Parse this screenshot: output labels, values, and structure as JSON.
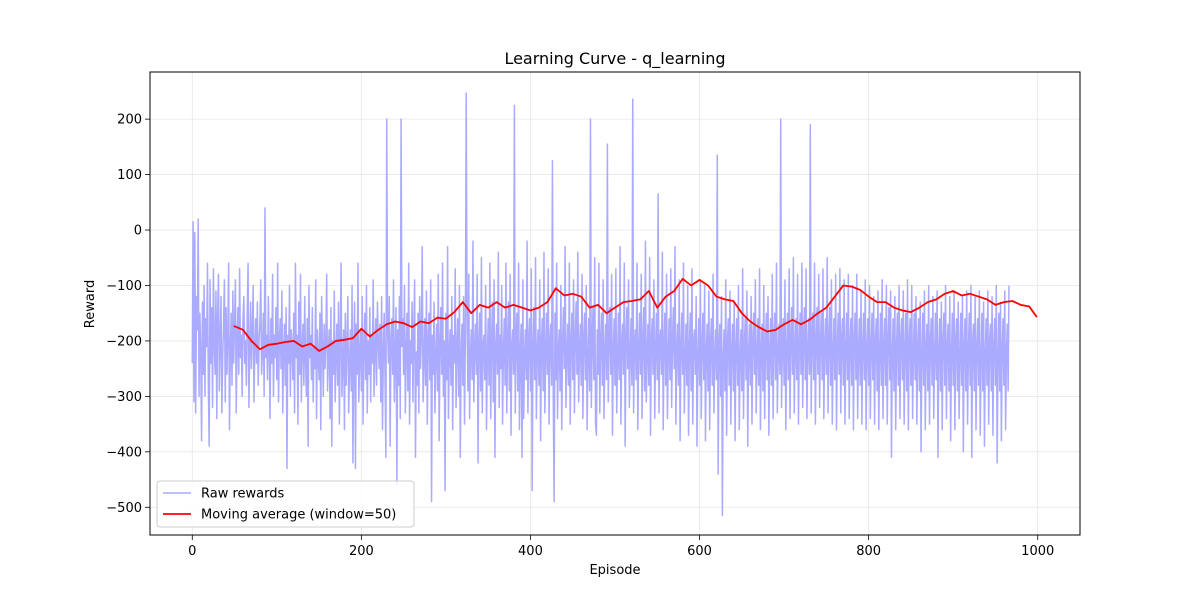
{
  "chart_data": {
    "type": "line",
    "title": "Learning Curve - q_learning",
    "xlabel": "Episode",
    "ylabel": "Reward",
    "xlim": [
      -50,
      1050
    ],
    "ylim": [
      -550,
      285
    ],
    "xticks": [
      0,
      200,
      400,
      600,
      800,
      1000
    ],
    "yticks": [
      -500,
      -400,
      -300,
      -200,
      -100,
      0,
      100,
      200
    ],
    "xtick_labels": [
      "0",
      "200",
      "400",
      "600",
      "800",
      "1000"
    ],
    "ytick_labels": [
      "−500",
      "−400",
      "−300",
      "−200",
      "−100",
      "0",
      "100",
      "200"
    ],
    "grid": true,
    "legend_position": "lower-left",
    "series": [
      {
        "name": "Raw rewards",
        "color": "#aaaaff",
        "episodes": 1000,
        "summary": {
          "min": -515,
          "max": 247
        },
        "values": [
          -240,
          15,
          -310,
          -5,
          -330,
          -120,
          -180,
          20,
          -300,
          -150,
          -220,
          -380,
          -130,
          -260,
          -100,
          -300,
          -160,
          -210,
          -60,
          -280,
          -390,
          -90,
          -240,
          -140,
          -320,
          -70,
          -200,
          -260,
          -110,
          -340,
          -150,
          -80,
          -290,
          -200,
          -120,
          -330,
          -230,
          -170,
          -90,
          -310,
          -140,
          -260,
          -190,
          -60,
          -360,
          -220,
          -150,
          -280,
          -110,
          -240,
          -170,
          -90,
          -330,
          -200,
          -140,
          -260,
          -70,
          -230,
          -190,
          -300,
          -160,
          -120,
          -240,
          -200,
          -280,
          -150,
          -60,
          -320,
          -220,
          -130,
          -250,
          -180,
          -100,
          -310,
          -210,
          -160,
          -240,
          -130,
          -280,
          -200,
          -170,
          -90,
          -260,
          -220,
          -150,
          -300,
          40,
          -230,
          -190,
          -270,
          -120,
          -210,
          -340,
          -160,
          -240,
          -80,
          -300,
          -190,
          -230,
          -140,
          -270,
          -60,
          -310,
          -200,
          -160,
          -250,
          -110,
          -330,
          -220,
          -170,
          -280,
          -140,
          -430,
          -190,
          -240,
          -100,
          -300,
          -180,
          -210,
          -270,
          -150,
          -330,
          -60,
          -230,
          -190,
          -350,
          -130,
          -260,
          -80,
          -310,
          -210,
          -170,
          -280,
          -120,
          -240,
          -300,
          -160,
          -390,
          -100,
          -230,
          -190,
          -270,
          -140,
          -310,
          -210,
          -250,
          -90,
          -340,
          -180,
          -230,
          -270,
          -150,
          -360,
          -120,
          -210,
          -300,
          -170,
          -250,
          -200,
          -80,
          -290,
          -220,
          -180,
          -340,
          -140,
          -390,
          -200,
          -260,
          -110,
          -310,
          -230,
          -170,
          -280,
          -130,
          -350,
          -200,
          -60,
          -300,
          -240,
          -180,
          -360,
          -150,
          -280,
          -210,
          -120,
          -330,
          -250,
          -180,
          -290,
          -100,
          -420,
          -220,
          -130,
          -430,
          -170,
          -260,
          -60,
          -310,
          -230,
          -180,
          -290,
          -120,
          -350,
          -210,
          -150,
          -270,
          -100,
          -330,
          -200,
          -260,
          -140,
          -310,
          -190,
          -240,
          -90,
          -300,
          -220,
          -160,
          -280,
          -130,
          -200,
          -250,
          -170,
          -310,
          -120,
          -360,
          -220,
          -150,
          -270,
          -410,
          200,
          -180,
          -240,
          -120,
          -390,
          -200,
          -160,
          -260,
          -90,
          -310,
          -230,
          -140,
          -460,
          -180,
          -280,
          -120,
          -340,
          200,
          -210,
          -160,
          -260,
          -100,
          -330,
          -220,
          -150,
          -290,
          -60,
          -350,
          -200,
          -240,
          -130,
          -310,
          -180,
          -90,
          -410,
          -220,
          -280,
          -150,
          -330,
          -120,
          -250,
          -190,
          -30,
          -310,
          -240,
          -160,
          -280,
          -110,
          -350,
          -200,
          -150,
          -270,
          -90,
          -490,
          -190,
          -260,
          -130,
          -330,
          -230,
          -170,
          -290,
          -80,
          -380,
          -210,
          -140,
          -260,
          -60,
          -300,
          -200,
          -470,
          -150,
          -270,
          -30,
          -340,
          -220,
          -180,
          -280,
          -120,
          -360,
          -190,
          -240,
          -70,
          -320,
          -210,
          -160,
          -300,
          -100,
          -410,
          -230,
          -170,
          -280,
          -120,
          -350,
          -200,
          247,
          -150,
          -290,
          -80,
          -340,
          -230,
          -180,
          -270,
          -20,
          -310,
          -220,
          -170,
          -260,
          -80,
          -420,
          -200,
          -150,
          -290,
          -50,
          -330,
          -210,
          -190,
          -270,
          -100,
          -360,
          -230,
          -160,
          -280,
          -60,
          -340,
          -200,
          -130,
          -310,
          -90,
          -410,
          -210,
          -170,
          -260,
          -40,
          -320,
          -190,
          -250,
          -100,
          -350,
          -220,
          -160,
          -280,
          -60,
          -330,
          -200,
          -130,
          -290,
          -80,
          -370,
          -210,
          -180,
          -260,
          225,
          -330,
          -200,
          -150,
          -290,
          -60,
          -360,
          -220,
          -170,
          -410,
          -90,
          -340,
          -230,
          -180,
          -270,
          -20,
          -330,
          -200,
          -160,
          -290,
          -70,
          -470,
          -210,
          -140,
          -270,
          -50,
          -340,
          -220,
          -180,
          -280,
          -90,
          -380,
          -200,
          -160,
          -290,
          -40,
          -330,
          -230,
          -150,
          -260,
          -70,
          -350,
          -200,
          -170,
          -280,
          125,
          -310,
          -490,
          -150,
          -270,
          -60,
          -340,
          -220,
          -180,
          -290,
          -100,
          -360,
          -200,
          -140,
          -250,
          -30,
          -320,
          -230,
          -170,
          -280,
          -60,
          -350,
          -210,
          -150,
          -270,
          -90,
          -330,
          -200,
          -130,
          -260,
          -40,
          -310,
          -220,
          -170,
          -280,
          -80,
          -340,
          -200,
          -150,
          -270,
          -100,
          -360,
          -230,
          -160,
          -290,
          200,
          -320,
          -210,
          -140,
          -270,
          -50,
          -350,
          -370,
          -180,
          -260,
          -60,
          -330,
          -200,
          -150,
          -280,
          -90,
          -340,
          -220,
          -170,
          -270,
          155,
          -310,
          -200,
          -140,
          -260,
          -80,
          -370,
          -220,
          -160,
          -280,
          -70,
          -330,
          -240,
          -150,
          -270,
          -30,
          -350,
          -210,
          -170,
          -260,
          -60,
          -390,
          -200,
          -140,
          -250,
          -90,
          -320,
          -230,
          -160,
          -280,
          236,
          -330,
          -210,
          -180,
          -270,
          -60,
          -360,
          -220,
          -150,
          -260,
          -80,
          -340,
          -200,
          -140,
          -290,
          -20,
          -310,
          -230,
          -170,
          -280,
          -50,
          -370,
          -200,
          -160,
          -260,
          -90,
          -340,
          -220,
          -150,
          -270,
          65,
          -330,
          -200,
          -180,
          -260,
          -40,
          -360,
          -210,
          -150,
          -280,
          -80,
          -340,
          -230,
          -160,
          -270,
          -70,
          -320,
          -200,
          -140,
          -250,
          -30,
          -350,
          -220,
          -170,
          -280,
          -90,
          -380,
          -210,
          -150,
          -260,
          -60,
          -330,
          -240,
          -170,
          -280,
          -100,
          -370,
          -210,
          -150,
          -290,
          -70,
          -350,
          -200,
          -180,
          -260,
          -120,
          -390,
          -230,
          -160,
          -280,
          -90,
          -340,
          -210,
          -150,
          -270,
          -100,
          -380,
          -220,
          -170,
          -290,
          -110,
          -360,
          -200,
          -160,
          -280,
          -80,
          -330,
          -230,
          -180,
          -270,
          135,
          -440,
          -210,
          -170,
          -300,
          -120,
          -515,
          -230,
          -180,
          -290,
          -90,
          -370,
          -200,
          -160,
          -280,
          -110,
          -350,
          -220,
          -170,
          -290,
          -130,
          -380,
          -210,
          -160,
          -280,
          -100,
          -360,
          -230,
          -180,
          -290,
          -70,
          -340,
          -210,
          -160,
          -270,
          -110,
          -390,
          -220,
          -170,
          -280,
          -120,
          -350,
          -200,
          -150,
          -260,
          -90,
          -330,
          -230,
          -160,
          -280,
          -70,
          -360,
          -220,
          -170,
          -290,
          -100,
          -340,
          -210,
          -150,
          -270,
          -120,
          -370,
          -220,
          -160,
          -280,
          -80,
          -340,
          -200,
          -150,
          -270,
          -60,
          -330,
          -230,
          -170,
          -260,
          200,
          -320,
          -210,
          -160,
          -280,
          -90,
          -360,
          -220,
          -150,
          -270,
          -70,
          -340,
          -200,
          -140,
          -260,
          -50,
          -330,
          -220,
          -160,
          -270,
          -80,
          -350,
          -210,
          -150,
          -260,
          -60,
          -320,
          -200,
          -140,
          -270,
          -70,
          -340,
          -220,
          -160,
          -260,
          190,
          -330,
          -200,
          -150,
          -270,
          -60,
          -350,
          -210,
          -140,
          -260,
          -80,
          -320,
          -200,
          -150,
          -270,
          -70,
          -340,
          -210,
          -160,
          -260,
          -50,
          -330,
          -200,
          -140,
          -280,
          -90,
          -350,
          -220,
          -160,
          -270,
          -80,
          -360,
          -210,
          -150,
          -260,
          -70,
          -330,
          -200,
          -160,
          -280,
          -90,
          -350,
          -220,
          -150,
          -270,
          -80,
          -340,
          -210,
          -160,
          -280,
          -100,
          -360,
          -200,
          -150,
          -270,
          -80,
          -340,
          -220,
          -160,
          -280,
          -110,
          -350,
          -210,
          -150,
          -270,
          -90,
          -360,
          -220,
          -160,
          -280,
          -100,
          -340,
          -210,
          -150,
          -270,
          -120,
          -350,
          -200,
          -160,
          -290,
          -110,
          -360,
          -220,
          -150,
          -280,
          -90,
          -340,
          -210,
          -160,
          -280,
          -100,
          -350,
          -200,
          -140,
          -270,
          -110,
          -410,
          -220,
          -160,
          -290,
          -120,
          -360,
          -210,
          -150,
          -280,
          -100,
          -340,
          -200,
          -160,
          -270,
          -110,
          -350,
          -220,
          -150,
          -290,
          -90,
          -360,
          -200,
          -160,
          -280,
          -100,
          -340,
          -220,
          -150,
          -270,
          -120,
          -350,
          -210,
          -160,
          -290,
          -130,
          -400,
          -220,
          -150,
          -280,
          -110,
          -360,
          -210,
          -170,
          -290,
          -100,
          -350,
          -200,
          -160,
          -280,
          -120,
          -340,
          -230,
          -150,
          -270,
          -110,
          -410,
          -220,
          -160,
          -290,
          -130,
          -360,
          -200,
          -150,
          -280,
          -100,
          -340,
          -210,
          -170,
          -290,
          -120,
          -380,
          -220,
          -150,
          -280,
          -110,
          -360,
          -200,
          -160,
          -290,
          -130,
          -340,
          -230,
          -150,
          -280,
          -120,
          -400,
          -210,
          -160,
          -290,
          -110,
          -350,
          -220,
          -150,
          -280,
          -100,
          -410,
          -200,
          -170,
          -290,
          -120,
          -360,
          -210,
          -160,
          -280,
          -110,
          -370,
          -230,
          -150,
          -290,
          -130,
          -390,
          -220,
          -160,
          -280,
          -110,
          -350,
          -200,
          -170,
          -290,
          -120,
          -370,
          -210,
          -160,
          -280,
          -100,
          -420,
          -230,
          -150,
          -290,
          -130,
          -380,
          -210,
          -160,
          -280,
          -110,
          -360,
          -220,
          -170,
          -290,
          -100
        ]
      },
      {
        "name": "Moving average (window=50)",
        "color": "#ff0000",
        "x_start": 49,
        "x": [
          49,
          60,
          70,
          80,
          90,
          100,
          110,
          120,
          130,
          140,
          150,
          160,
          170,
          180,
          190,
          200,
          210,
          220,
          230,
          240,
          250,
          260,
          270,
          280,
          290,
          300,
          310,
          320,
          330,
          340,
          350,
          360,
          370,
          380,
          390,
          400,
          410,
          420,
          430,
          440,
          450,
          460,
          470,
          480,
          490,
          500,
          510,
          520,
          530,
          540,
          550,
          560,
          570,
          580,
          590,
          600,
          610,
          620,
          630,
          640,
          650,
          660,
          670,
          680,
          690,
          700,
          710,
          720,
          730,
          740,
          750,
          760,
          770,
          780,
          790,
          800,
          810,
          820,
          830,
          840,
          850,
          860,
          870,
          880,
          890,
          900,
          910,
          920,
          930,
          940,
          950,
          960,
          970,
          980,
          990,
          999
        ],
        "values": [
          -173,
          -180,
          -200,
          -215,
          -207,
          -205,
          -202,
          -200,
          -210,
          -205,
          -218,
          -210,
          -200,
          -198,
          -195,
          -178,
          -192,
          -180,
          -170,
          -165,
          -168,
          -175,
          -165,
          -168,
          -158,
          -160,
          -148,
          -130,
          -150,
          -135,
          -140,
          -130,
          -140,
          -135,
          -140,
          -145,
          -140,
          -130,
          -105,
          -118,
          -115,
          -120,
          -140,
          -135,
          -150,
          -140,
          -130,
          -128,
          -125,
          -110,
          -140,
          -120,
          -110,
          -88,
          -100,
          -90,
          -100,
          -120,
          -125,
          -128,
          -150,
          -165,
          -175,
          -183,
          -180,
          -170,
          -162,
          -170,
          -162,
          -150,
          -140,
          -120,
          -100,
          -102,
          -108,
          -120,
          -130,
          -130,
          -140,
          -145,
          -148,
          -140,
          -130,
          -125,
          -115,
          -110,
          -118,
          -115,
          -120,
          -125,
          -135,
          -130,
          -128,
          -135,
          -138,
          -157
        ]
      }
    ]
  }
}
